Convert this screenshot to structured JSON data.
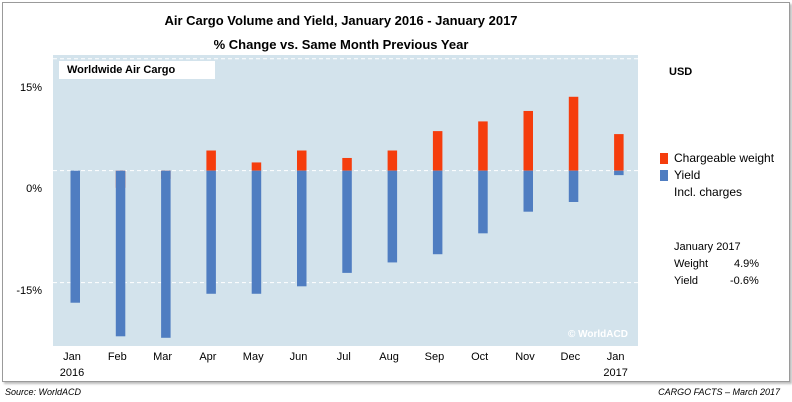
{
  "header": {
    "title": "Air Cargo Volume and Yield, January 2016 - January 2017",
    "subtitle": "% Change vs. Same Month Previous Year",
    "currency": "USD"
  },
  "inset_label": "Worldwide Air Cargo",
  "copyright": "© WorldACD",
  "legend": {
    "weight_label": "Chargeable weight",
    "yield_label": "Yield",
    "yield_note": "Incl. charges",
    "colors": {
      "weight": "#f53d0d",
      "yield": "#4f7dc1"
    }
  },
  "stats": {
    "period": "January 2017",
    "weight_label": "Weight",
    "weight_value": "4.9%",
    "yield_label": "Yield",
    "yield_value": "-0.6%"
  },
  "footer": {
    "source": "Source: WorldACD",
    "credit": "CARGO FACTS – March 2017"
  },
  "chart_data": {
    "type": "bar",
    "categories": [
      "Jan",
      "Feb",
      "Mar",
      "Apr",
      "May",
      "Jun",
      "Jul",
      "Aug",
      "Sep",
      "Oct",
      "Nov",
      "Dec",
      "Jan"
    ],
    "year_labels": {
      "first": "2016",
      "last": "2017"
    },
    "series": [
      {
        "name": "Chargeable weight",
        "values": [
          null,
          -2.3,
          -1.1,
          2.7,
          1.1,
          2.7,
          1.7,
          2.7,
          5.3,
          6.6,
          8.0,
          9.9,
          4.9
        ]
      },
      {
        "name": "Yield",
        "values": [
          -17.7,
          -22.2,
          -22.4,
          -16.5,
          -16.5,
          -15.5,
          -13.7,
          -12.3,
          -11.2,
          -8.4,
          -5.5,
          -4.2,
          -0.6
        ]
      }
    ],
    "ylim": [
      -23.5,
      15.5
    ],
    "yticks": [
      15,
      0,
      -15
    ],
    "ytick_labels": [
      "15%",
      "0%",
      "-15%"
    ]
  }
}
